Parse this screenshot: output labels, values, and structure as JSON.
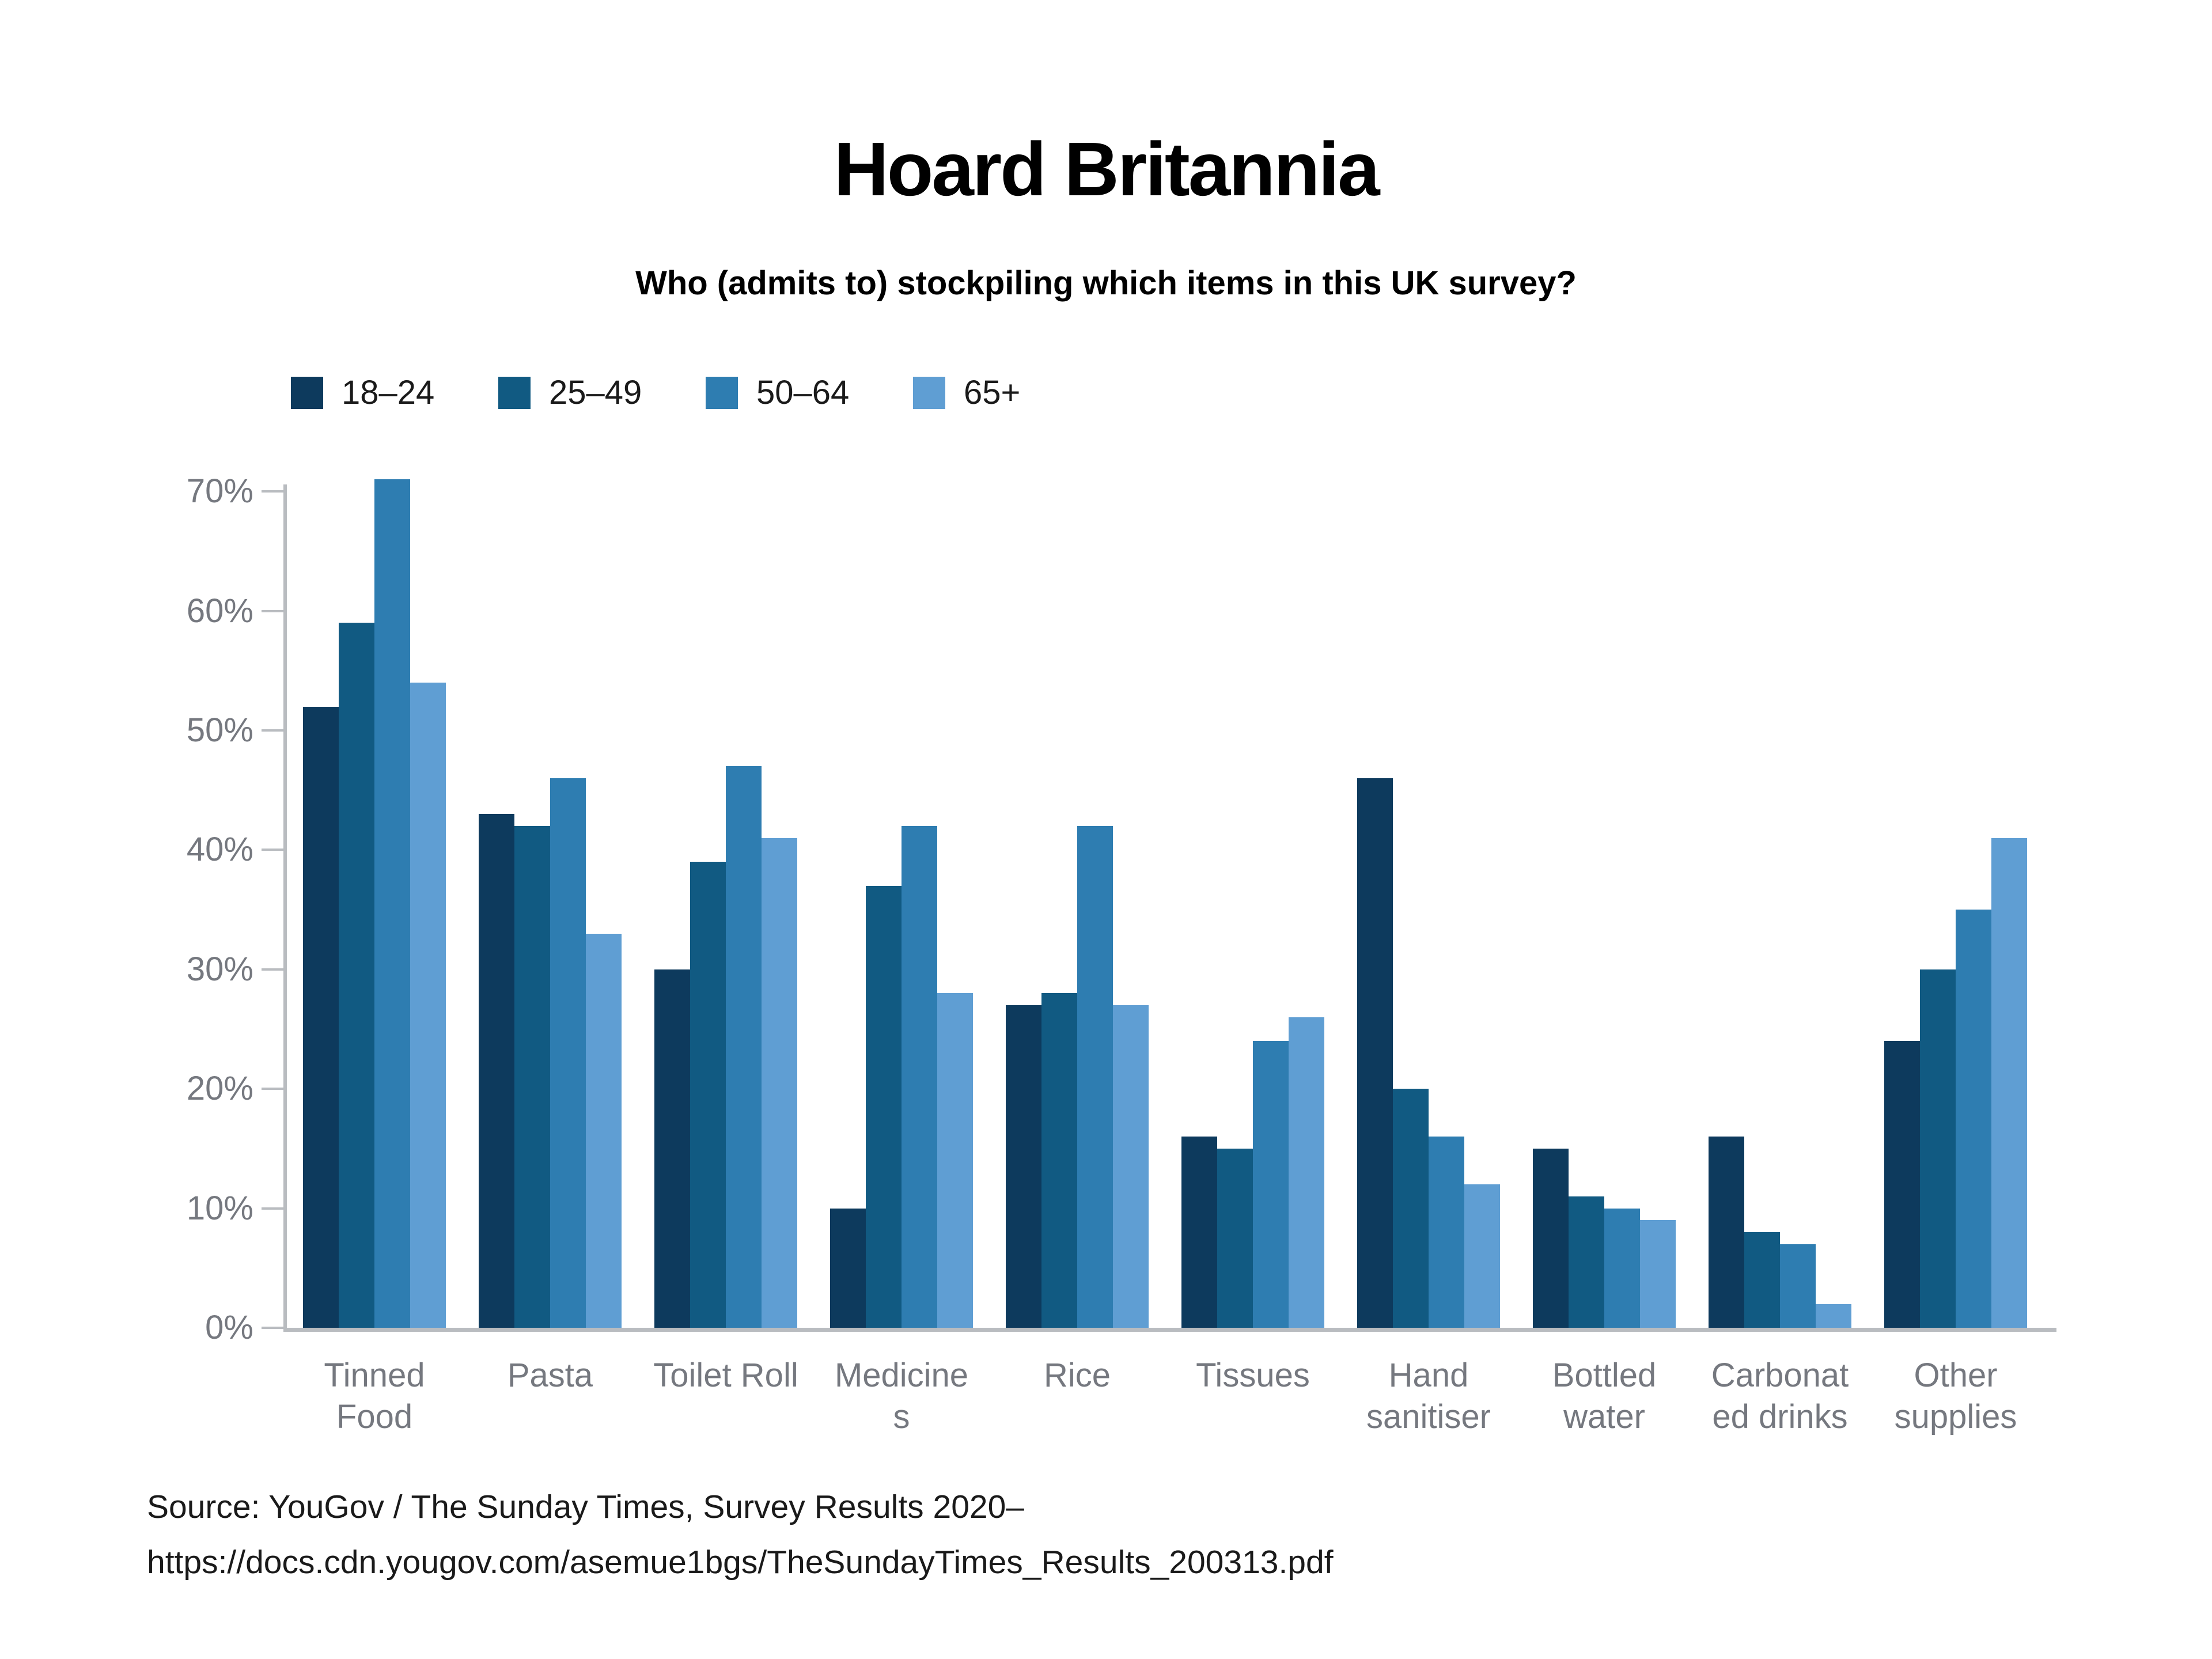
{
  "title": "Hoard Britannia",
  "subtitle": "Who (admits to) stockpiling which items in this UK survey?",
  "chart_data": {
    "type": "bar",
    "title": "Hoard Britannia",
    "subtitle": "Who (admits to) stockpiling which items in this UK survey?",
    "categories": [
      "Tinned Food",
      "Pasta",
      "Toilet Roll",
      "Medicines",
      "Rice",
      "Tissues",
      "Hand sanitiser",
      "Bottled water",
      "Carbonated drinks",
      "Other supplies"
    ],
    "category_label_lines": [
      [
        "Tinned",
        "Food"
      ],
      [
        "Pasta"
      ],
      [
        "Toilet Roll"
      ],
      [
        "Medicine",
        "s"
      ],
      [
        "Rice"
      ],
      [
        "Tissues"
      ],
      [
        "Hand",
        "sanitiser"
      ],
      [
        "Bottled",
        "water"
      ],
      [
        "Carbonat",
        "ed drinks"
      ],
      [
        "Other",
        "supplies"
      ]
    ],
    "series": [
      {
        "name": "18–24",
        "color": "#0d3a5d",
        "values": [
          52,
          43,
          30,
          10,
          27,
          16,
          46,
          15,
          16,
          24
        ]
      },
      {
        "name": "25–49",
        "color": "#115a82",
        "values": [
          59,
          42,
          39,
          37,
          28,
          15,
          20,
          11,
          8,
          30
        ]
      },
      {
        "name": "50–64",
        "color": "#2e7db1",
        "values": [
          71,
          46,
          47,
          42,
          42,
          24,
          16,
          10,
          7,
          35
        ]
      },
      {
        "name": "65+",
        "color": "#5f9ed3",
        "values": [
          54,
          33,
          41,
          28,
          27,
          26,
          12,
          9,
          2,
          41
        ]
      }
    ],
    "xlabel": "",
    "ylabel": "",
    "ylim": [
      0,
      70
    ],
    "y_tick_labels": [
      "0%",
      "10%",
      "20%",
      "30%",
      "40%",
      "50%",
      "60%",
      "70%"
    ],
    "y_tick_values": [
      0,
      10,
      20,
      30,
      40,
      50,
      60,
      70
    ],
    "grid": false,
    "legend_position": "top-left",
    "axis_color": "#b9bcc0",
    "tick_label_color": "#75787f"
  },
  "source": {
    "line1": "Source: YouGov / The Sunday Times, Survey Results 2020–",
    "line2": "https://docs.cdn.yougov.com/asemue1bgs/TheSundayTimes_Results_200313.pdf"
  }
}
